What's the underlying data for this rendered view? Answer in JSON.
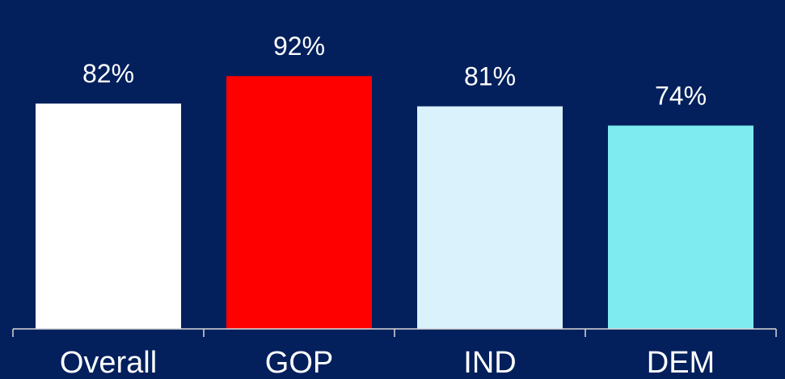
{
  "chart_data": {
    "type": "bar",
    "categories": [
      "Overall",
      "GOP",
      "IND",
      "DEM"
    ],
    "values": [
      82,
      92,
      81,
      74
    ],
    "value_labels": [
      "82%",
      "92%",
      "81%",
      "74%"
    ],
    "bar_colors": [
      "#ffffff",
      "#ff0000",
      "#daf2fc",
      "#7eebf0"
    ],
    "background_color": "#03205c",
    "ylim": [
      0,
      100
    ],
    "grid": false,
    "legend": "none"
  }
}
